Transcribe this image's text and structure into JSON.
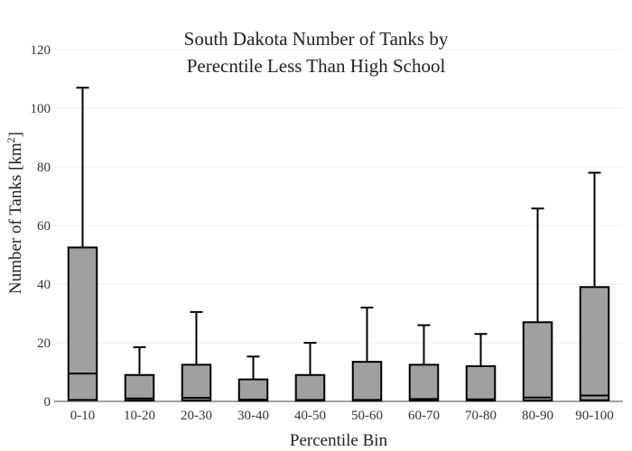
{
  "chart_data": {
    "type": "box",
    "title_lines": [
      "South Dakota Number of Tanks by",
      "Perecntile Less Than High School"
    ],
    "xlabel": "Percentile Bin",
    "ylabel_main": "Number of Tanks  [km",
    "ylabel_sup": "2",
    "ylabel_end": "]",
    "ylim": [
      0,
      120
    ],
    "yticks": [
      0,
      20,
      40,
      60,
      80,
      100,
      120
    ],
    "grid": true,
    "box_color": "#a0a0a0",
    "line_color": "#000000",
    "categories": [
      "0-10",
      "10-20",
      "20-30",
      "30-40",
      "40-50",
      "50-60",
      "60-70",
      "70-80",
      "80-90",
      "90-100"
    ],
    "boxes": [
      {
        "q1": 0.5,
        "median": 9.5,
        "q3": 52.5,
        "whisker_high": 107
      },
      {
        "q1": 0.3,
        "median": 1.0,
        "q3": 9.0,
        "whisker_high": 18.5
      },
      {
        "q1": 0.3,
        "median": 1.2,
        "q3": 12.5,
        "whisker_high": 30.5
      },
      {
        "q1": 0.2,
        "median": 0.6,
        "q3": 7.5,
        "whisker_high": 15.3
      },
      {
        "q1": 0.2,
        "median": 0.5,
        "q3": 9.0,
        "whisker_high": 20.0
      },
      {
        "q1": 0.2,
        "median": 0.5,
        "q3": 13.5,
        "whisker_high": 32.0
      },
      {
        "q1": 0.3,
        "median": 0.8,
        "q3": 12.5,
        "whisker_high": 26.0
      },
      {
        "q1": 0.3,
        "median": 0.7,
        "q3": 12.0,
        "whisker_high": 23.0
      },
      {
        "q1": 0.3,
        "median": 1.3,
        "q3": 27.0,
        "whisker_high": 65.8
      },
      {
        "q1": 0.4,
        "median": 2.0,
        "q3": 39.0,
        "whisker_high": 78.0
      }
    ]
  }
}
